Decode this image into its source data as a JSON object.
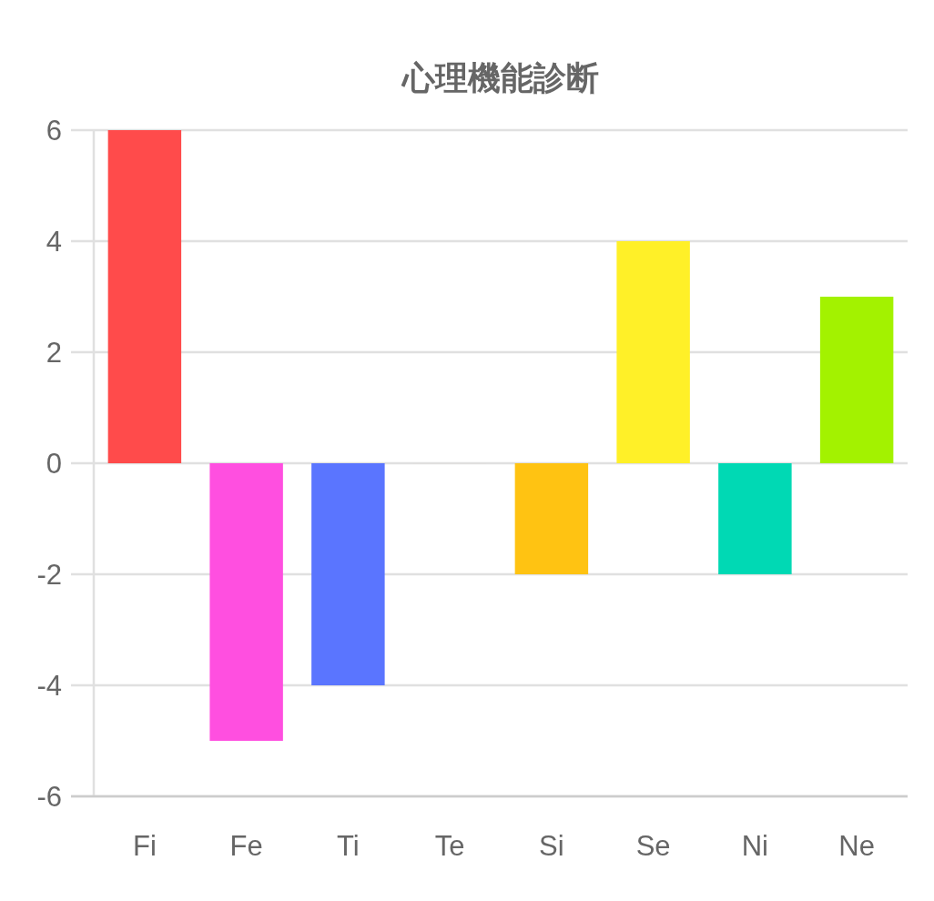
{
  "chart_data": {
    "type": "bar",
    "title": "心理機能診断",
    "categories": [
      "Fi",
      "Fe",
      "Ti",
      "Te",
      "Si",
      "Se",
      "Ni",
      "Ne"
    ],
    "values": [
      6,
      -5,
      -4,
      0,
      -2,
      4,
      -2,
      3
    ],
    "colors": [
      "#ff4b4b",
      "#ff4fe0",
      "#5a75ff",
      "#ff8a3d",
      "#ffc312",
      "#fff028",
      "#00d9b4",
      "#a3f200"
    ],
    "ylim": [
      -6,
      6
    ],
    "yticks": [
      -6,
      -4,
      -2,
      0,
      2,
      4,
      6
    ],
    "grid": "y"
  }
}
